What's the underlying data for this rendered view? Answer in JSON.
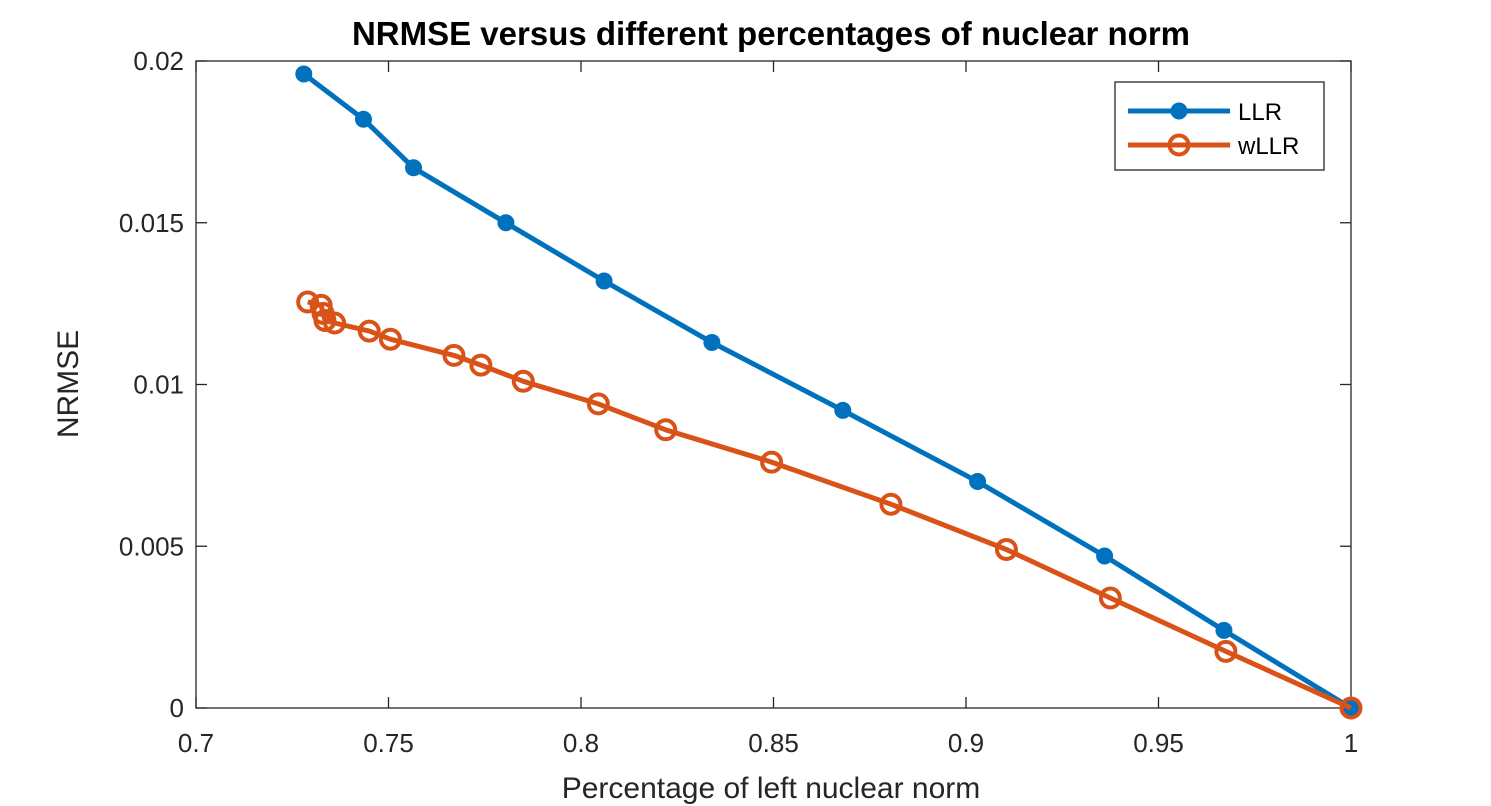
{
  "chart_data": {
    "type": "line",
    "title": "NRMSE versus different percentages of nuclear norm",
    "xlabel": "Percentage of left nuclear norm",
    "ylabel": "NRMSE",
    "xlim": [
      0.7,
      1.0
    ],
    "ylim": [
      0,
      0.02
    ],
    "xticks": [
      0.7,
      0.75,
      0.8,
      0.85,
      0.9,
      0.95,
      1.0
    ],
    "xtick_labels": [
      "0.7",
      "0.75",
      "0.8",
      "0.85",
      "0.9",
      "0.95",
      "1"
    ],
    "yticks": [
      0,
      0.005,
      0.01,
      0.015,
      0.02
    ],
    "ytick_labels": [
      "0",
      "0.005",
      "0.01",
      "0.015",
      "0.02"
    ],
    "grid": false,
    "legend_position": "top-right",
    "series": [
      {
        "name": "LLR",
        "color": "#0072BD",
        "marker": "filled-circle",
        "points": [
          [
            0.728,
            0.0196
          ],
          [
            0.7435,
            0.0182
          ],
          [
            0.7565,
            0.0167
          ],
          [
            0.7805,
            0.015
          ],
          [
            0.806,
            0.0132
          ],
          [
            0.834,
            0.0113
          ],
          [
            0.868,
            0.0092
          ],
          [
            0.903,
            0.007
          ],
          [
            0.936,
            0.0047
          ],
          [
            0.967,
            0.0024
          ],
          [
            1.0,
            0.0
          ]
        ]
      },
      {
        "name": "wLLR",
        "color": "#D95319",
        "marker": "open-circle",
        "points": [
          [
            0.729,
            0.01255
          ],
          [
            0.7325,
            0.01245
          ],
          [
            0.733,
            0.0122
          ],
          [
            0.7335,
            0.01198
          ],
          [
            0.736,
            0.0119
          ],
          [
            0.745,
            0.01165
          ],
          [
            0.7505,
            0.0114
          ],
          [
            0.767,
            0.0109
          ],
          [
            0.774,
            0.0106
          ],
          [
            0.785,
            0.0101
          ],
          [
            0.8045,
            0.0094
          ],
          [
            0.822,
            0.0086
          ],
          [
            0.8495,
            0.0076
          ],
          [
            0.8805,
            0.0063
          ],
          [
            0.9105,
            0.0049
          ],
          [
            0.9375,
            0.0034
          ],
          [
            0.9675,
            0.00175
          ],
          [
            1.0,
            0.0
          ]
        ]
      }
    ]
  }
}
